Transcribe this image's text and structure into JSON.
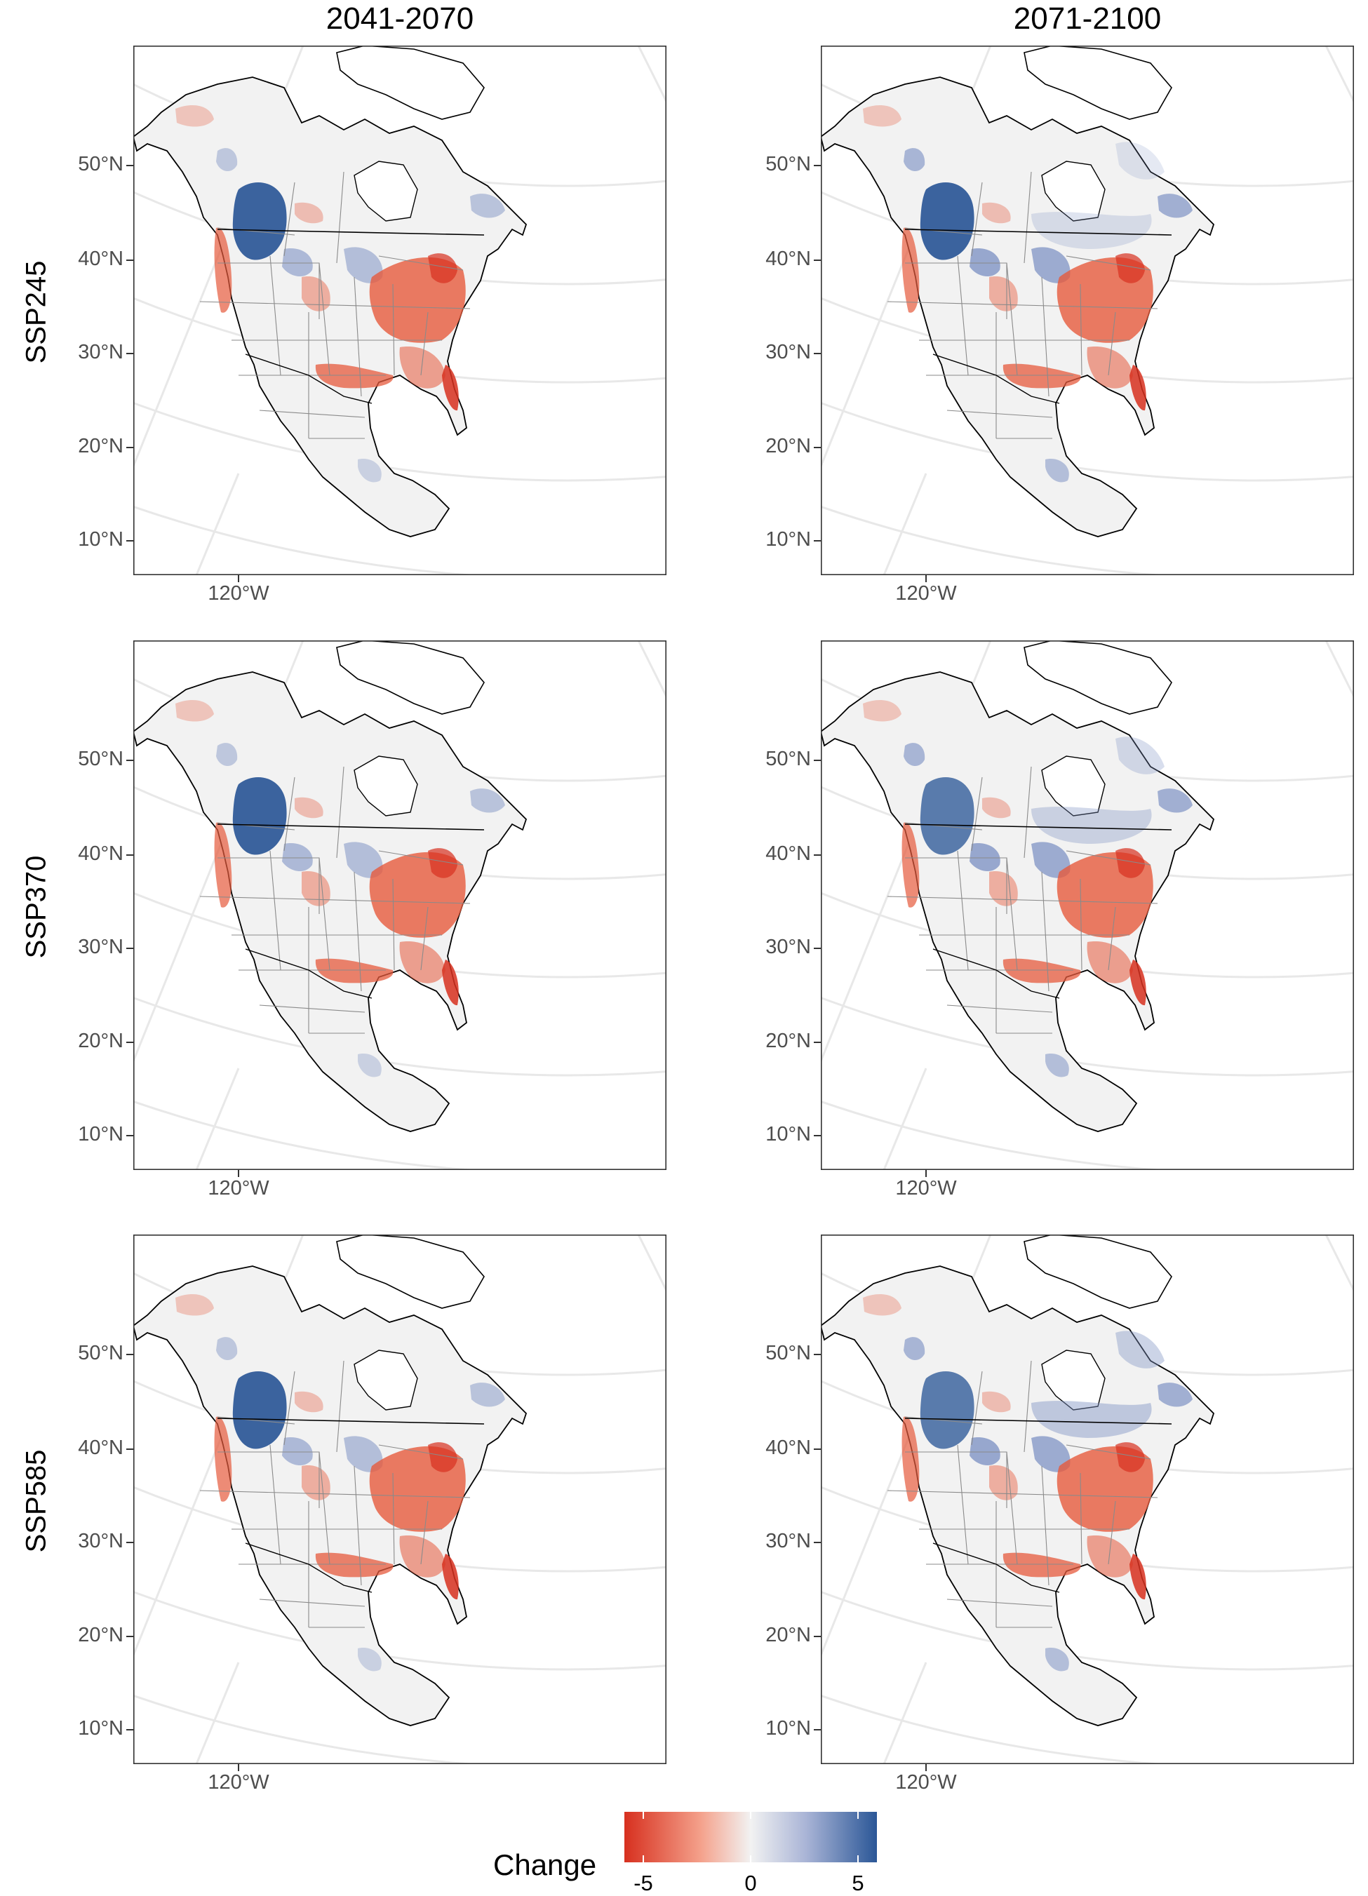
{
  "figure": {
    "columns": [
      "2041-2070",
      "2071-2100"
    ],
    "rows": [
      "SSP245",
      "SSP370",
      "SSP585"
    ],
    "lat_ticks": [
      "50°N",
      "40°N",
      "30°N",
      "20°N",
      "10°N"
    ],
    "lon_ticks": [
      "120°W"
    ]
  },
  "legend": {
    "title": "Change",
    "ticks": [
      "-5",
      "0",
      "5"
    ],
    "colors": {
      "low": "#d7301f",
      "mid": "#f2f2f2",
      "high": "#2b5797"
    }
  },
  "colors": {
    "land": "#f2f2f2",
    "water": "#ffffff",
    "coast": "#000000",
    "borders": "#8a8a8a",
    "graticule": "#e8e8e8",
    "loss": "#e65a3c",
    "strong_loss": "#d7301f",
    "gain": "#7f93c4",
    "strong_gain": "#2b5797"
  },
  "panels": [
    {
      "row": 0,
      "col": 0,
      "period": "2041-2070",
      "scenario": "SSP245"
    },
    {
      "row": 0,
      "col": 1,
      "period": "2071-2100",
      "scenario": "SSP245"
    },
    {
      "row": 1,
      "col": 0,
      "period": "2041-2070",
      "scenario": "SSP370"
    },
    {
      "row": 1,
      "col": 1,
      "period": "2071-2100",
      "scenario": "SSP370"
    },
    {
      "row": 2,
      "col": 0,
      "period": "2041-2070",
      "scenario": "SSP585"
    },
    {
      "row": 2,
      "col": 1,
      "period": "2071-2100",
      "scenario": "SSP585"
    }
  ]
}
